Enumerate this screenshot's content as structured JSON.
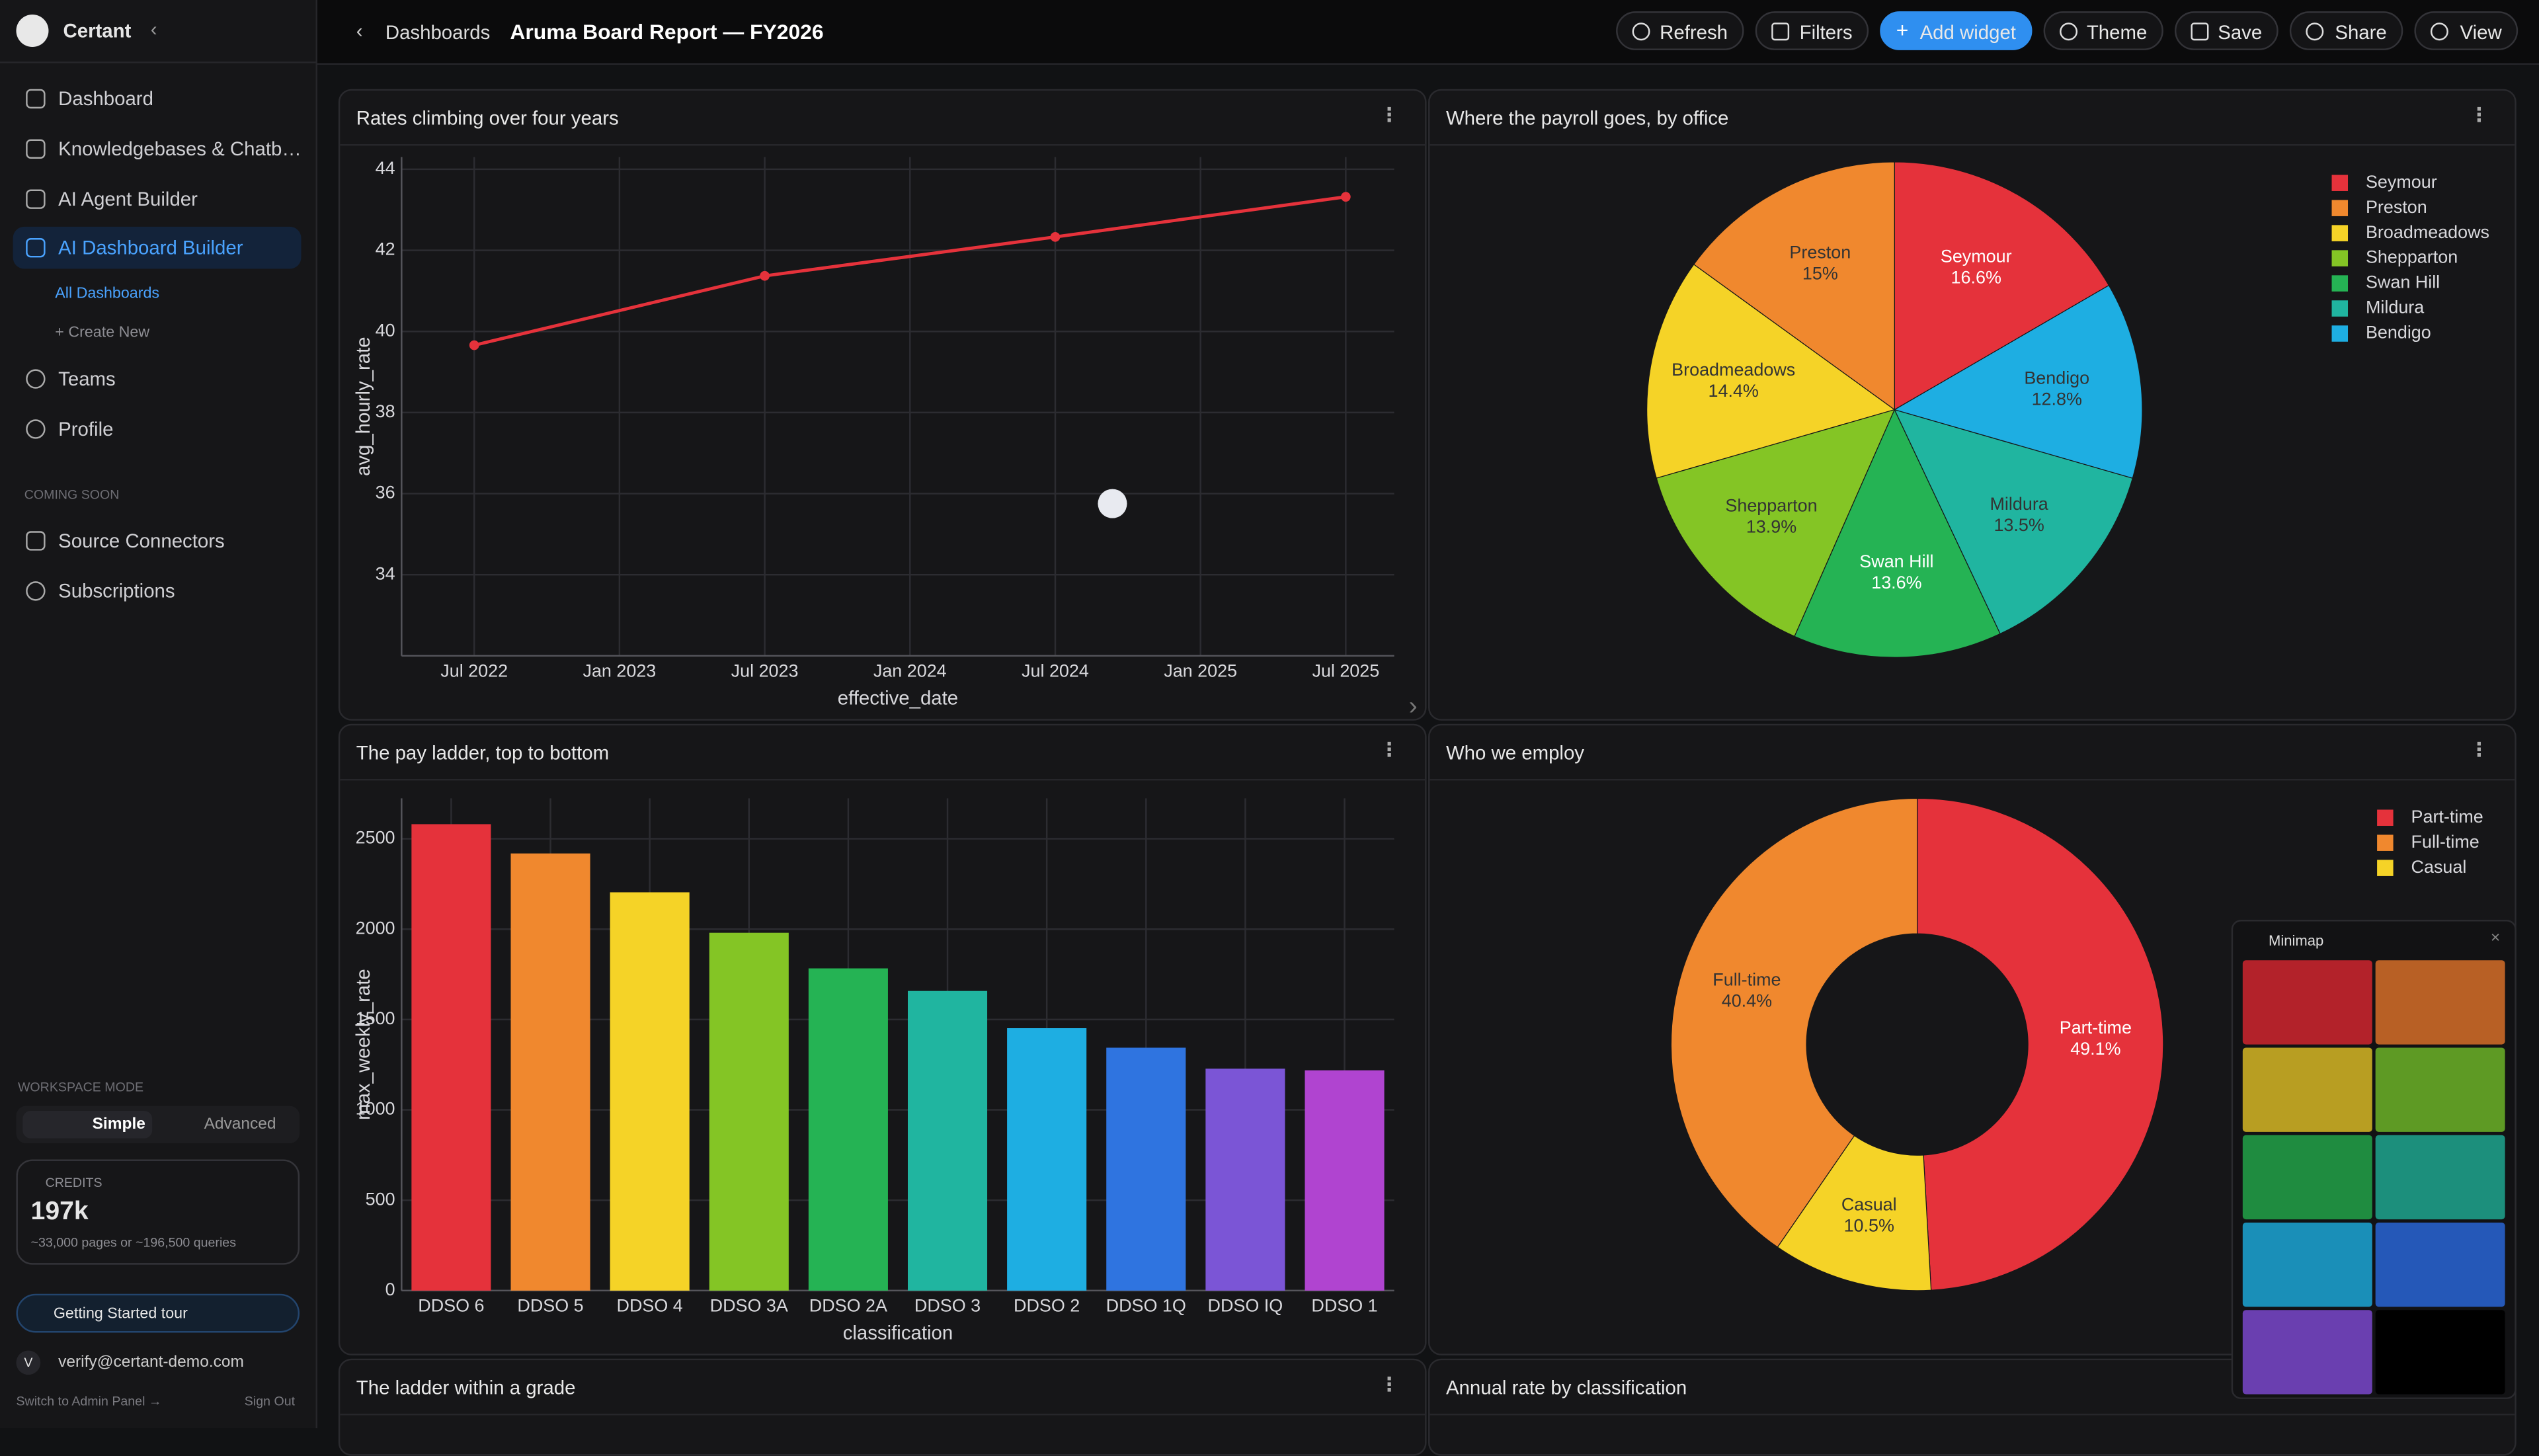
{
  "sidebar": {
    "brand": "Certant",
    "nav": [
      "Dashboard",
      "Knowledgebases & Chatb…",
      "AI Agent Builder",
      "AI Dashboard Builder"
    ],
    "sub_nav": [
      "All Dashboards",
      "+ Create New"
    ],
    "nav2": [
      "Teams",
      "Profile"
    ],
    "coming_soon_label": "COMING SOON",
    "coming_soon": [
      "Source Connectors",
      "Subscriptions"
    ],
    "workspace_mode_label": "WORKSPACE MODE",
    "modes": [
      "Simple",
      "Advanced"
    ],
    "credits_label": "CREDITS",
    "credits_value": "197k",
    "credits_note": "~33,000 pages or ~196,500 queries",
    "tour": "Getting Started tour",
    "avatar": "V",
    "email": "verify@certant-demo.com",
    "admin_link": "Switch to Admin Panel →",
    "sign_out": "Sign Out"
  },
  "topbar": {
    "back": "Dashboards",
    "title": "Aruma Board Report — FY2026",
    "buttons": [
      "Refresh",
      "Filters",
      "Add widget",
      "Theme",
      "Save",
      "Share",
      "View"
    ]
  },
  "more_widgets": [
    "The ladder within a grade",
    "Annual rate by classification"
  ],
  "minimap": {
    "title": "Minimap"
  },
  "chart_data": [
    {
      "type": "line",
      "title": "Rates climbing over four years",
      "x": [
        "2022-07",
        "2023-07",
        "2024-07",
        "2025-07"
      ],
      "values": [
        39.66,
        41.37,
        42.33,
        43.32
      ],
      "color": "#e5323b",
      "xlabel": "effective_date",
      "ylabel": "avg_hourly_rate",
      "xlim": [
        "2022-04",
        "2025-09"
      ],
      "xticks": [
        {
          "value": "2022-07",
          "label": "Jul 2022"
        },
        {
          "value": "2023-01",
          "label": "Jan 2023"
        },
        {
          "value": "2023-07",
          "label": "Jul 2023"
        },
        {
          "value": "2024-01",
          "label": "Jan 2024"
        },
        {
          "value": "2024-07",
          "label": "Jul 2024"
        },
        {
          "value": "2025-01",
          "label": "Jan 2025"
        },
        {
          "value": "2025-07",
          "label": "Jul 2025"
        }
      ],
      "ylim": [
        32,
        44.3
      ],
      "yticks": [
        34,
        36,
        38,
        40,
        42,
        44
      ],
      "grid": true
    },
    {
      "type": "pie",
      "title": "Where the payroll goes, by office",
      "categories": [
        "Seymour",
        "Preston",
        "Broadmeadows",
        "Shepparton",
        "Swan Hill",
        "Mildura",
        "Bendigo"
      ],
      "values": [
        16.6,
        15,
        14.4,
        13.9,
        13.6,
        13.5,
        12.8
      ],
      "value_labels": [
        "16.6%",
        "15%",
        "14.4%",
        "13.9%",
        "13.6%",
        "13.5%",
        "12.8%"
      ],
      "colors": [
        "#e5323b",
        "#f0882e",
        "#f5d327",
        "#84c525",
        "#25b354",
        "#20b5a0",
        "#1eaee2"
      ],
      "direction": "counterclockwise",
      "legend": "top-right"
    },
    {
      "type": "bar",
      "title": "The pay ladder, top to bottom",
      "categories": [
        "DDSO 6",
        "DDSO 5",
        "DDSO 4",
        "DDSO 3A",
        "DDSO 2A",
        "DDSO 3",
        "DDSO 2",
        "DDSO 1Q",
        "DDSO IQ",
        "DDSO 1"
      ],
      "values": [
        2581,
        2419,
        2204,
        1980,
        1783,
        1658,
        1452,
        1344,
        1228,
        1219
      ],
      "colors": [
        "#e5323b",
        "#f0882e",
        "#f5d327",
        "#84c525",
        "#25b354",
        "#20b5a0",
        "#1eaee2",
        "#2f74e0",
        "#7b55d6",
        "#b044d0"
      ],
      "xlabel": "classification",
      "ylabel": "max_weekly_rate",
      "ylim": [
        0,
        2724
      ],
      "yticks": [
        0,
        500,
        1000,
        1500,
        2000,
        2500
      ],
      "grid": true
    },
    {
      "type": "pie",
      "title": "Who we employ",
      "categories": [
        "Part-time",
        "Full-time",
        "Casual"
      ],
      "values": [
        49.1,
        40.4,
        10.5
      ],
      "value_labels": [
        "49.1%",
        "40.4%",
        "10.5%"
      ],
      "colors": [
        "#e5323b",
        "#f0882e",
        "#f5d327"
      ],
      "hole": 0.45,
      "direction": "counterclockwise",
      "legend": "top-right"
    }
  ]
}
